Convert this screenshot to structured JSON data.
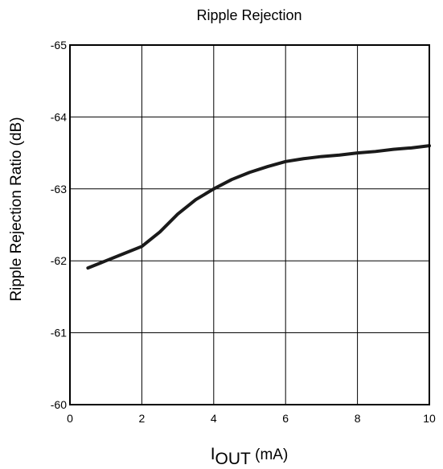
{
  "chart_data": {
    "type": "line",
    "title": "Ripple Rejection",
    "xlabel": {
      "main": "I",
      "subscript": "OUT",
      "unit": " (mA)"
    },
    "ylabel": "Ripple Rejection Ratio (dB)",
    "xlim": [
      0,
      10
    ],
    "ylim": [
      -60,
      -65
    ],
    "y_inverted": true,
    "grid": true,
    "x_ticks": [
      0,
      2,
      4,
      6,
      8,
      10
    ],
    "x_tick_labels": [
      "0",
      "2",
      "4",
      "6",
      "8",
      "10"
    ],
    "y_ticks": [
      -60,
      -61,
      -62,
      -63,
      -64,
      -65
    ],
    "y_tick_labels": [
      "-60",
      "-61",
      "-62",
      "-63",
      "-64",
      "-65"
    ],
    "series": [
      {
        "color": "#1a1a1a",
        "x": [
          0.5,
          1.0,
          1.5,
          2.0,
          2.5,
          3.0,
          3.5,
          4.0,
          4.5,
          5.0,
          5.5,
          6.0,
          6.5,
          7.0,
          7.5,
          8.0,
          8.5,
          9.0,
          9.5,
          10.0
        ],
        "y": [
          -61.9,
          -62.0,
          -62.1,
          -62.2,
          -62.4,
          -62.65,
          -62.85,
          -63.0,
          -63.13,
          -63.23,
          -63.31,
          -63.38,
          -63.42,
          -63.45,
          -63.47,
          -63.5,
          -63.52,
          -63.55,
          -63.57,
          -63.6
        ]
      }
    ]
  }
}
